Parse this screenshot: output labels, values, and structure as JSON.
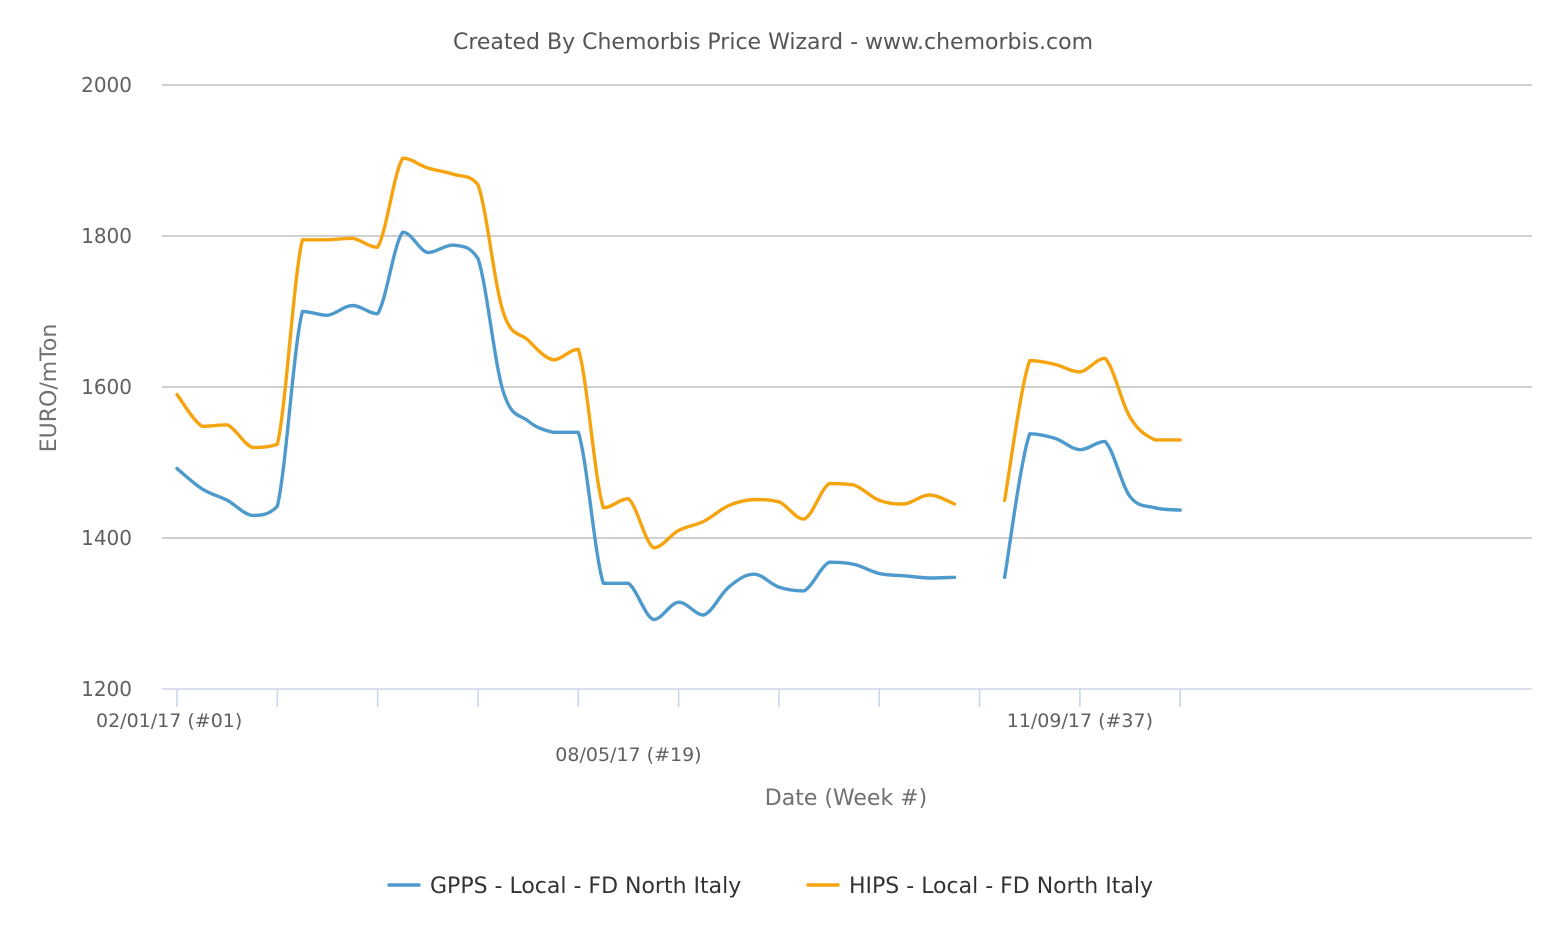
{
  "chart_data": {
    "type": "line",
    "title": "Created By Chemorbis Price Wizard - www.chemorbis.com",
    "xlabel": "Date (Week #)",
    "ylabel": "EURO/mTon",
    "ylim": [
      1200,
      2000
    ],
    "yticks": [
      1200,
      1400,
      1600,
      1800,
      2000
    ],
    "grid": true,
    "legend_position": "bottom-center",
    "x_week_range": [
      1,
      41
    ],
    "x_tick_labels": [
      {
        "week": 1,
        "label": "02/01/17 (#01)"
      },
      {
        "week": 19,
        "label": "08/05/17 (#19)"
      },
      {
        "week": 37,
        "label": "11/09/17 (#37)"
      }
    ],
    "series": [
      {
        "name": "GPPS - Local - FD North Italy",
        "color": "#4e9acd",
        "x": [
          1,
          2,
          3,
          4,
          5,
          6,
          7,
          8,
          9,
          10,
          11,
          12,
          13,
          14,
          15,
          16,
          17,
          18,
          19,
          20,
          21,
          22,
          23,
          24,
          25,
          26,
          27,
          28,
          29,
          30,
          31,
          32,
          33,
          34,
          35,
          36,
          37,
          38,
          39,
          40,
          41
        ],
        "values": [
          1492,
          1465,
          1450,
          1430,
          1442,
          1700,
          1695,
          1708,
          1697,
          1805,
          1778,
          1788,
          1770,
          1595,
          1555,
          1540,
          1540,
          1340,
          1340,
          1292,
          1315,
          1298,
          1335,
          1352,
          1335,
          1330,
          1368,
          1365,
          1353,
          1350,
          1347,
          1348,
          null,
          1348,
          1538,
          1532,
          1517,
          1528,
          1455,
          1440,
          1437
        ]
      },
      {
        "name": "HIPS - Local - FD North Italy",
        "color": "#f5a40f",
        "x": [
          1,
          2,
          3,
          4,
          5,
          6,
          7,
          8,
          9,
          10,
          11,
          12,
          13,
          14,
          15,
          16,
          17,
          18,
          19,
          20,
          21,
          22,
          23,
          24,
          25,
          26,
          27,
          28,
          29,
          30,
          31,
          32,
          33,
          34,
          35,
          36,
          37,
          38,
          39,
          40,
          41
        ],
        "values": [
          1590,
          1548,
          1550,
          1520,
          1524,
          1795,
          1795,
          1797,
          1785,
          1903,
          1890,
          1882,
          1868,
          1700,
          1662,
          1636,
          1650,
          1440,
          1452,
          1387,
          1410,
          1422,
          1443,
          1451,
          1448,
          1425,
          1472,
          1470,
          1450,
          1445,
          1457,
          1445,
          null,
          1450,
          1635,
          1630,
          1620,
          1638,
          1560,
          1530,
          1530
        ]
      }
    ]
  }
}
